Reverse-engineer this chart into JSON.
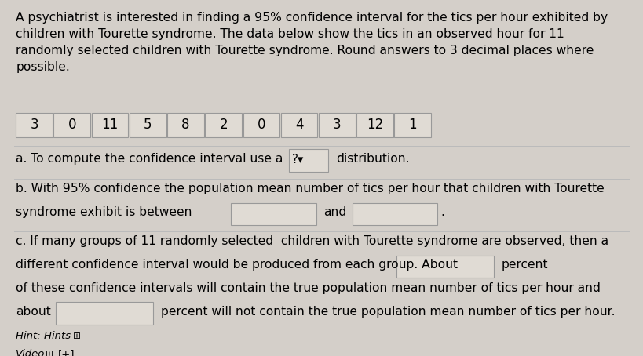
{
  "bg_color": "#d4cfc9",
  "text_color": "#000000",
  "title_text": "A psychiatrist is interested in finding a 95% confidence interval for the tics per hour exhibited by\nchildren with Tourette syndrome. The data below show the tics in an observed hour for 11\nrandomly selected children with Tourette syndrome. Round answers to 3 decimal places where\npossible.",
  "data_values": [
    "3",
    "0",
    "11",
    "5",
    "8",
    "2",
    "0",
    "4",
    "3",
    "12",
    "1"
  ],
  "part_a": "a. To compute the confidence interval use a",
  "part_a_dropdown": "?",
  "part_a_dropdown_arrow": "▾",
  "part_a_end": "distribution.",
  "part_b_line1": "b. With 95% confidence the population mean number of tics per hour that children with Tourette",
  "part_b_line2": "syndrome exhibit is between",
  "part_b_and": "and",
  "part_b_period": ".",
  "part_c_line1": "c. If many groups of 11 randomly selected  children with Tourette syndrome are observed, then a",
  "part_c_line2": "different confidence interval would be produced from each group. About",
  "part_c_percent1": "percent",
  "part_c_line3": "of these confidence intervals will contain the true population mean number of tics per hour and",
  "part_c_dot": "·",
  "part_c_about": "about",
  "part_c_percent2": "percent will not contain the true population mean number of tics per hour.",
  "hint_text": "Hint: Hints",
  "hint_icon": "⊞",
  "video_text": "Video",
  "video_icon": "⊞",
  "video_extra": "[+]",
  "box_fill": "#e0dbd4",
  "box_edge": "#999999",
  "separator_color": "#bbbbbb",
  "font_size_body": 11.2,
  "font_size_data": 12.0,
  "font_size_hint": 9.5
}
